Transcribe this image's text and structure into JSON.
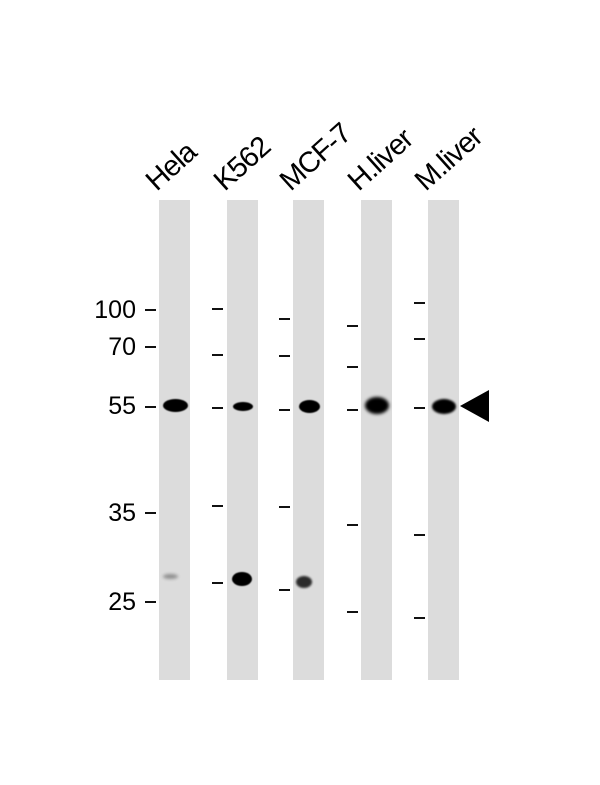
{
  "lanes": [
    {
      "label": "Hela"
    },
    {
      "label": "K562"
    },
    {
      "label": "MCF-7"
    },
    {
      "label": "H.liver"
    },
    {
      "label": "M.liver"
    }
  ],
  "markers": [
    {
      "label": "100"
    },
    {
      "label": "70"
    },
    {
      "label": "55"
    },
    {
      "label": "35"
    },
    {
      "label": "25"
    }
  ],
  "colors": {
    "lane": "#dcdcdc",
    "band": "#000000"
  },
  "arrow_icon": "left-pointing-triangle"
}
